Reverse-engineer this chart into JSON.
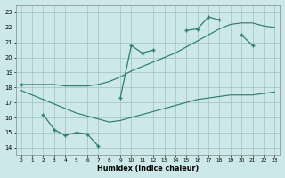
{
  "x_values": [
    0,
    1,
    2,
    3,
    4,
    5,
    6,
    7,
    8,
    9,
    10,
    11,
    12,
    13,
    14,
    15,
    16,
    17,
    18,
    19,
    20,
    21,
    22,
    23
  ],
  "line_jagged": [
    18.2,
    null,
    16.2,
    15.2,
    14.8,
    15.0,
    14.9,
    14.1,
    null,
    17.3,
    20.8,
    20.3,
    20.5,
    null,
    null,
    21.8,
    21.9,
    22.7,
    22.5,
    null,
    21.5,
    20.8,
    null,
    null
  ],
  "line_upper": [
    18.2,
    null,
    null,
    null,
    null,
    null,
    null,
    null,
    null,
    null,
    null,
    null,
    null,
    null,
    null,
    null,
    null,
    null,
    null,
    22.2,
    21.8,
    null,
    null,
    null
  ],
  "line_min": [
    17.8,
    17.5,
    17.2,
    16.9,
    16.6,
    16.3,
    16.1,
    15.9,
    15.7,
    15.8,
    16.0,
    16.2,
    16.4,
    16.6,
    16.8,
    17.0,
    17.2,
    17.3,
    17.4,
    17.5,
    17.5,
    17.5,
    17.6,
    17.7
  ],
  "line_max": [
    18.2,
    18.2,
    18.2,
    18.2,
    18.1,
    18.1,
    18.1,
    18.2,
    18.4,
    18.7,
    19.1,
    19.4,
    19.7,
    20.0,
    20.3,
    20.7,
    21.1,
    21.5,
    21.9,
    22.2,
    22.3,
    22.3,
    22.1,
    22.0
  ],
  "color": "#2e7d72",
  "bg_color": "#cce8e8",
  "grid_color": "#a0c0c0",
  "xlabel": "Humidex (Indice chaleur)",
  "xlim": [
    -0.5,
    23.5
  ],
  "ylim": [
    13.5,
    23.5
  ],
  "xticks": [
    0,
    1,
    2,
    3,
    4,
    5,
    6,
    7,
    8,
    9,
    10,
    11,
    12,
    13,
    14,
    15,
    16,
    17,
    18,
    19,
    20,
    21,
    22,
    23
  ],
  "yticks": [
    14,
    15,
    16,
    17,
    18,
    19,
    20,
    21,
    22,
    23
  ]
}
